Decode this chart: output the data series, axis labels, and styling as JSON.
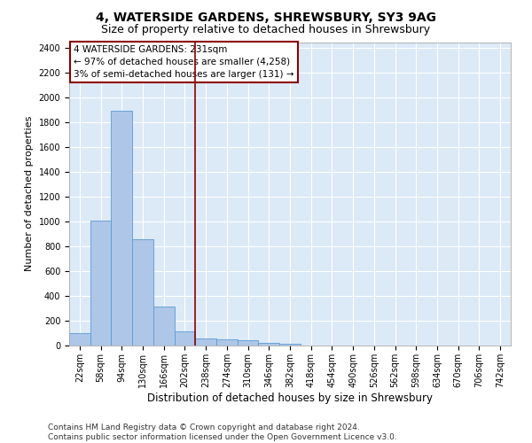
{
  "title": "4, WATERSIDE GARDENS, SHREWSBURY, SY3 9AG",
  "subtitle": "Size of property relative to detached houses in Shrewsbury",
  "xlabel": "Distribution of detached houses by size in Shrewsbury",
  "ylabel": "Number of detached properties",
  "bin_labels": [
    "22sqm",
    "58sqm",
    "94sqm",
    "130sqm",
    "166sqm",
    "202sqm",
    "238sqm",
    "274sqm",
    "310sqm",
    "346sqm",
    "382sqm",
    "418sqm",
    "454sqm",
    "490sqm",
    "526sqm",
    "562sqm",
    "598sqm",
    "634sqm",
    "670sqm",
    "706sqm",
    "742sqm"
  ],
  "bar_values": [
    100,
    1010,
    1895,
    860,
    315,
    115,
    60,
    50,
    45,
    25,
    15,
    0,
    0,
    0,
    0,
    0,
    0,
    0,
    0,
    0,
    0
  ],
  "bar_color": "#aec6e8",
  "bar_edge_color": "#5b9bd5",
  "vline_x": 5.5,
  "vline_color": "#8b0000",
  "annotation_line1": "4 WATERSIDE GARDENS: 231sqm",
  "annotation_line2": "← 97% of detached houses are smaller (4,258)",
  "annotation_line3": "3% of semi-detached houses are larger (131) →",
  "annotation_box_color": "#8b0000",
  "annotation_fill": "#ffffff",
  "ylim": [
    0,
    2450
  ],
  "yticks": [
    0,
    200,
    400,
    600,
    800,
    1000,
    1200,
    1400,
    1600,
    1800,
    2000,
    2200,
    2400
  ],
  "background_color": "#dce9f7",
  "footer_line1": "Contains HM Land Registry data © Crown copyright and database right 2024.",
  "footer_line2": "Contains public sector information licensed under the Open Government Licence v3.0.",
  "title_fontsize": 10,
  "subtitle_fontsize": 9,
  "xlabel_fontsize": 8.5,
  "ylabel_fontsize": 8,
  "tick_fontsize": 7,
  "footer_fontsize": 6.5,
  "annotation_fontsize": 7.5
}
